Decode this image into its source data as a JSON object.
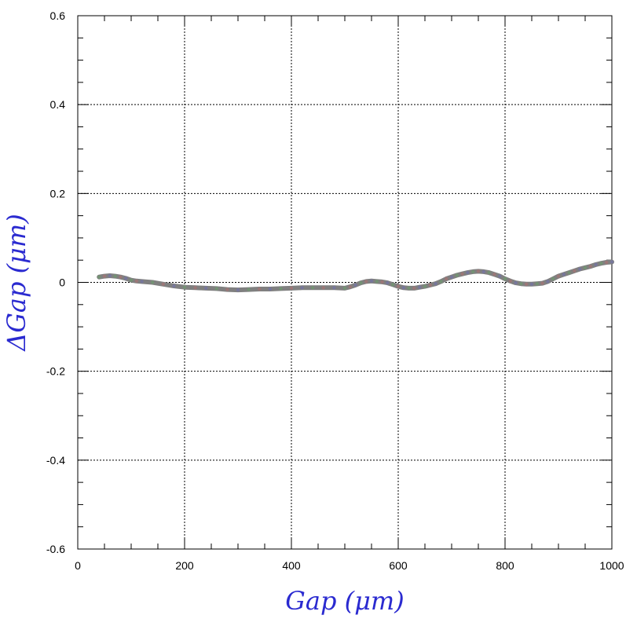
{
  "chart_data": {
    "type": "line",
    "title": "",
    "xlabel": "Gap  (μm)",
    "ylabel": "ΔGap  (μm)",
    "xlim": [
      0,
      1000
    ],
    "ylim": [
      -0.6,
      0.6
    ],
    "x_ticks": [
      0,
      200,
      400,
      600,
      800,
      1000
    ],
    "x_tick_labels": [
      "0",
      "200",
      "400",
      "600",
      "800",
      "1000"
    ],
    "y_ticks": [
      -0.6,
      -0.4,
      -0.2,
      0,
      0.2,
      0.4,
      0.6
    ],
    "y_tick_labels": [
      "-0.6",
      "-0.4",
      "-0.2",
      "0",
      "0.2",
      "0.4",
      "0.6"
    ],
    "grid": true,
    "grid_style": "dotted",
    "colors": {
      "axis_title": "#2a2ad0",
      "line": "#808080",
      "grid": "#000000"
    },
    "series": [
      {
        "x": [
          40,
          50,
          60,
          70,
          80,
          90,
          100,
          110,
          120,
          140,
          160,
          180,
          200,
          220,
          240,
          260,
          280,
          300,
          320,
          340,
          360,
          380,
          400,
          420,
          440,
          460,
          480,
          500,
          510,
          520,
          530,
          540,
          550,
          560,
          570,
          580,
          590,
          600,
          610,
          620,
          630,
          640,
          650,
          660,
          670,
          680,
          690,
          700,
          710,
          720,
          730,
          740,
          750,
          760,
          770,
          780,
          790,
          800,
          810,
          820,
          830,
          840,
          850,
          860,
          870,
          880,
          890,
          900,
          910,
          920,
          930,
          940,
          950,
          960,
          970,
          980,
          990,
          1000
        ],
        "values": [
          0.012,
          0.014,
          0.015,
          0.014,
          0.012,
          0.009,
          0.005,
          0.003,
          0.002,
          0.0,
          -0.004,
          -0.008,
          -0.011,
          -0.012,
          -0.013,
          -0.014,
          -0.016,
          -0.017,
          -0.016,
          -0.015,
          -0.015,
          -0.014,
          -0.013,
          -0.012,
          -0.012,
          -0.012,
          -0.012,
          -0.013,
          -0.01,
          -0.006,
          -0.001,
          0.002,
          0.003,
          0.002,
          0.001,
          -0.001,
          -0.005,
          -0.009,
          -0.012,
          -0.013,
          -0.013,
          -0.011,
          -0.009,
          -0.006,
          -0.003,
          0.002,
          0.008,
          0.012,
          0.016,
          0.019,
          0.022,
          0.024,
          0.025,
          0.024,
          0.022,
          0.018,
          0.014,
          0.008,
          0.003,
          -0.001,
          -0.003,
          -0.004,
          -0.004,
          -0.003,
          -0.002,
          0.002,
          0.008,
          0.014,
          0.018,
          0.022,
          0.026,
          0.03,
          0.033,
          0.036,
          0.04,
          0.043,
          0.045,
          0.046
        ]
      }
    ]
  }
}
